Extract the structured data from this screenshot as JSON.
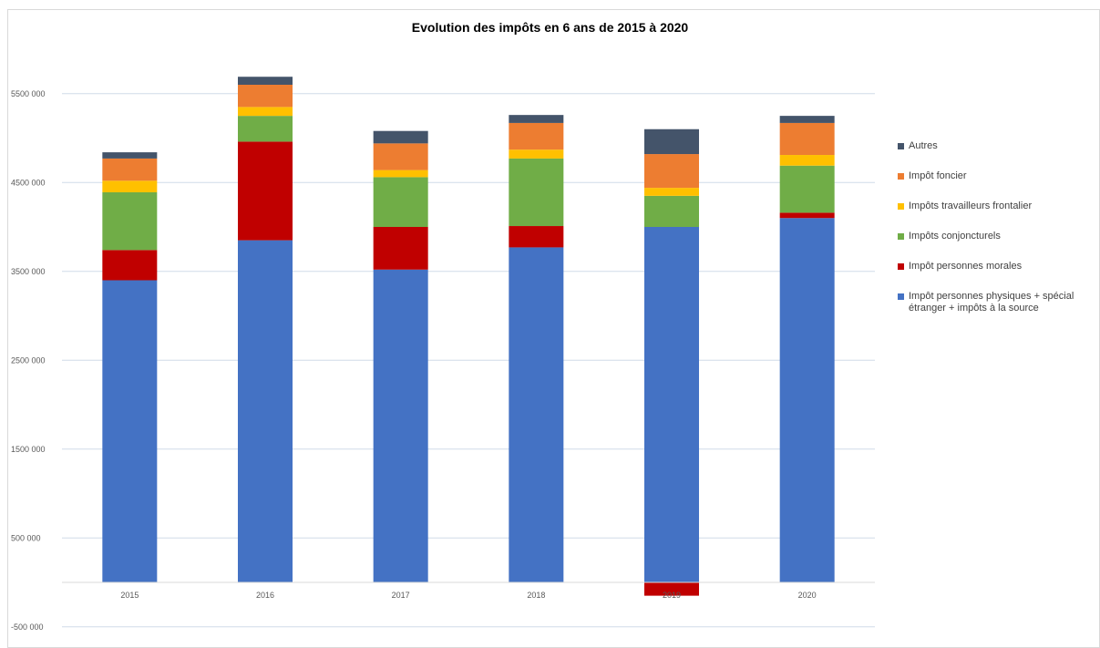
{
  "chart_data": {
    "type": "bar",
    "stacked": true,
    "title": "Evolution des impôts en 6 ans de 2015 à 2020",
    "categories": [
      "2015",
      "2016",
      "2017",
      "2018",
      "2019",
      "2020"
    ],
    "y_ticks": [
      "-500 000",
      "500 000",
      "1500 000",
      "2500 000",
      "3500 000",
      "4500 000",
      "5500 000"
    ],
    "ylim": [
      -720000,
      5800000
    ],
    "grid": true,
    "legend_position": "right",
    "series": [
      {
        "name": "Impôt personnes physiques + spécial étranger + impôts à la source",
        "color": "#4472C4",
        "values": [
          3400000,
          3850000,
          3520000,
          3770000,
          4000000,
          4100000
        ]
      },
      {
        "name": "Impôt personnes morales",
        "color": "#C00000",
        "values": [
          340000,
          1110000,
          480000,
          240000,
          -150000,
          60000
        ]
      },
      {
        "name": "Impôts conjoncturels",
        "color": "#70AD47",
        "values": [
          650000,
          290000,
          560000,
          760000,
          350000,
          530000
        ]
      },
      {
        "name": "Impôts travailleurs frontalier",
        "color": "#FFC000",
        "values": [
          130000,
          100000,
          80000,
          100000,
          90000,
          120000
        ]
      },
      {
        "name": "Impôt foncier",
        "color": "#ED7D31",
        "values": [
          250000,
          250000,
          300000,
          300000,
          380000,
          360000
        ]
      },
      {
        "name": "Autres",
        "color": "#44546A",
        "values": [
          70000,
          90000,
          140000,
          90000,
          280000,
          80000
        ]
      }
    ]
  }
}
